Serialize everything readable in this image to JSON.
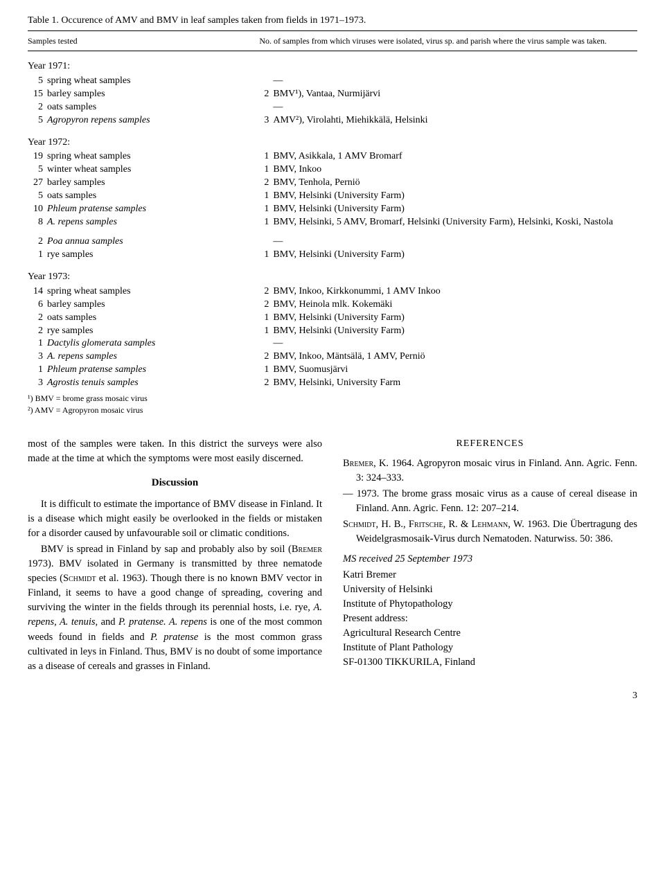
{
  "table": {
    "title": "Table 1. Occurence of AMV and BMV in leaf samples taken from fields in 1971–1973.",
    "header_col1": "Samples tested",
    "header_col2": "No. of samples from which viruses were isolated, virus sp. and parish where the virus sample was taken.",
    "year1971": {
      "label": "Year 1971:",
      "rows": [
        {
          "c": "5",
          "sample": "spring wheat samples",
          "rc": "",
          "result": "—"
        },
        {
          "c": "15",
          "sample": "barley samples",
          "rc": "2",
          "result": "BMV¹), Vantaa, Nurmijärvi"
        },
        {
          "c": "2",
          "sample": "oats samples",
          "rc": "",
          "result": "—"
        },
        {
          "c": "5",
          "sample": "Agropyron repens samples",
          "rc": "3",
          "result": "AMV²), Virolahti, Miehikkälä, Helsinki",
          "italic_sample": true
        }
      ]
    },
    "year1972": {
      "label": "Year 1972:",
      "rows": [
        {
          "c": "19",
          "sample": "spring wheat samples",
          "rc": "1",
          "result": "BMV, Asikkala, 1 AMV Bromarf"
        },
        {
          "c": "5",
          "sample": "winter wheat samples",
          "rc": "1",
          "result": "BMV, Inkoo"
        },
        {
          "c": "27",
          "sample": "barley samples",
          "rc": "2",
          "result": "BMV, Tenhola, Perniö"
        },
        {
          "c": "5",
          "sample": "oats samples",
          "rc": "1",
          "result": "BMV, Helsinki (University Farm)"
        },
        {
          "c": "10",
          "sample": "Phleum pratense samples",
          "rc": "1",
          "result": "BMV, Helsinki (University Farm)",
          "italic_sample": true
        },
        {
          "c": "8",
          "sample": "A. repens samples",
          "rc": "1",
          "result": "BMV, Helsinki, 5 AMV, Bromarf, Helsinki (University Farm), Helsinki, Koski, Nastola",
          "italic_sample": true
        }
      ],
      "rows2": [
        {
          "c": "2",
          "sample": "Poa annua samples",
          "rc": "",
          "result": "—",
          "italic_sample": true
        },
        {
          "c": "1",
          "sample": "rye samples",
          "rc": "1",
          "result": "BMV, Helsinki (University Farm)"
        }
      ]
    },
    "year1973": {
      "label": "Year 1973:",
      "rows": [
        {
          "c": "14",
          "sample": "spring wheat samples",
          "rc": "2",
          "result": "BMV, Inkoo, Kirkkonummi, 1 AMV Inkoo"
        },
        {
          "c": "6",
          "sample": "barley samples",
          "rc": "2",
          "result": "BMV, Heinola mlk. Kokemäki"
        },
        {
          "c": "2",
          "sample": "oats samples",
          "rc": "1",
          "result": "BMV, Helsinki (University Farm)"
        },
        {
          "c": "2",
          "sample": "rye samples",
          "rc": "1",
          "result": "BMV, Helsinki (University Farm)"
        },
        {
          "c": "1",
          "sample": "Dactylis glomerata samples",
          "rc": "",
          "result": "—",
          "italic_sample": true
        },
        {
          "c": "3",
          "sample": "A. repens samples",
          "rc": "2",
          "result": "BMV, Inkoo, Mäntsälä, 1 AMV, Perniö",
          "italic_sample": true
        },
        {
          "c": "1",
          "sample": "Phleum pratense samples",
          "rc": "1",
          "result": "BMV, Suomusjärvi",
          "italic_sample": true
        },
        {
          "c": "3",
          "sample": "Agrostis tenuis samples",
          "rc": "2",
          "result": "BMV, Helsinki, University Farm",
          "italic_sample": true
        }
      ]
    },
    "footnote1": "¹) BMV = brome grass mosaic virus",
    "footnote2": "²) AMV = Agropyron mosaic virus"
  },
  "body": {
    "p1": "most of the samples were taken. In this district the surveys were also made at the time at which the symptoms were most easily discerned.",
    "discussion_h": "Discussion",
    "p2": "It is difficult to estimate the importance of BMV disease in Finland. It is a disease which might easily be overlooked in the fields or mistaken for a disorder caused by unfavourable soil or climatic conditions.",
    "p3_a": "BMV is spread in Finland by sap and probably also by soil (",
    "p3_b": "Bremer",
    "p3_c": " 1973). BMV isolated in Germany is transmitted by three nematode species (",
    "p3_d": "Schmidt",
    "p3_e": " et al. 1963). Though there is no known BMV vector in Finland, it seems to have a good change of spreading, covering and surviving the winter in the fields through its perennial hosts, i.e. rye, ",
    "p3_f": "A. repens, A. tenuis,",
    "p3_g": " and ",
    "p3_h": "P. pratense. A. repens",
    "p4_a": " is one of the most common weeds found in fields and ",
    "p4_b": "P. pratense",
    "p4_c": " is the most common grass cultivated in leys in Finland. Thus, BMV is no doubt of some importance as a disease of cereals and grasses in Finland.",
    "references_h": "REFERENCES",
    "ref1_a": "Bremer",
    "ref1_b": ", K. 1964. Agropyron mosaic virus in Finland. Ann. Agric. Fenn. 3: 324–333.",
    "ref2": "— 1973. The brome grass mosaic virus as a cause of cereal disease in Finland. Ann. Agric. Fenn. 12: 207–214.",
    "ref3_a": "Schmidt",
    "ref3_b": ", H. B., ",
    "ref3_c": "Fritsche",
    "ref3_d": ", R. & ",
    "ref3_e": "Lehmann",
    "ref3_f": ", W. 1963. Die Übertragung des Weidelgrasmosaik-Virus durch Nematoden. Naturwiss. 50: 386.",
    "ms": "MS received 25 September 1973",
    "addr1": "Katri Bremer",
    "addr2": "University of Helsinki",
    "addr3": "Institute of Phytopathology",
    "addr4": "Present address:",
    "addr5": "Agricultural Research Centre",
    "addr6": "Institute of Plant Pathology",
    "addr7": "SF-01300 TIKKURILA, Finland"
  },
  "page_number": "3"
}
